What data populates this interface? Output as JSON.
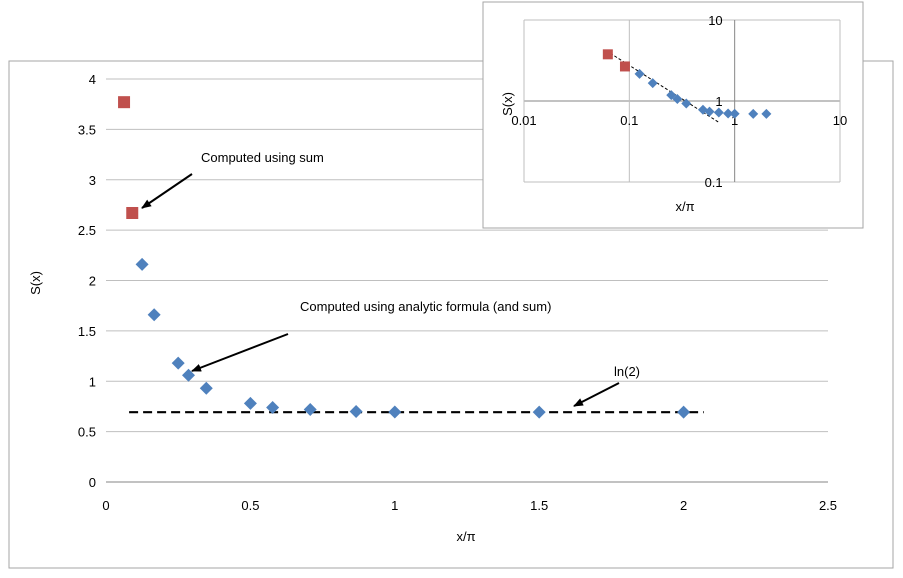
{
  "chart_data": [
    {
      "type": "scatter",
      "title": "",
      "xlabel": "x/π",
      "ylabel": "S(x)",
      "xlim": [
        0,
        2.5
      ],
      "ylim": [
        0,
        4
      ],
      "x_ticks": [
        "0",
        "0.5",
        "1",
        "1.5",
        "2",
        "2.5"
      ],
      "y_ticks": [
        "0",
        "0.5",
        "1",
        "1.5",
        "2",
        "2.5",
        "3",
        "3.5",
        "4"
      ],
      "grid": "horizontal",
      "series": [
        {
          "marker": "square",
          "color": "#c0504d",
          "points": [
            [
              0.0625,
              3.77
            ],
            [
              0.0909,
              2.67
            ]
          ]
        },
        {
          "marker": "diamond",
          "color": "#4f81bd",
          "points": [
            [
              0.125,
              2.16
            ],
            [
              0.1667,
              1.66
            ],
            [
              0.25,
              1.18
            ],
            [
              0.2857,
              1.06
            ],
            [
              0.3472,
              0.93
            ],
            [
              0.5,
              0.78
            ],
            [
              0.577,
              0.74
            ],
            [
              0.7071,
              0.72
            ],
            [
              0.866,
              0.7
            ],
            [
              1.0,
              0.695
            ],
            [
              1.5,
              0.693
            ],
            [
              2.0,
              0.693
            ]
          ]
        }
      ],
      "reference_line": {
        "y": 0.693,
        "x_range": [
          0.08,
          2.07
        ],
        "style": "dashed"
      },
      "annotations": [
        {
          "text": "Computed using sum",
          "target": [
            0.0909,
            2.67
          ]
        },
        {
          "text": "Computed using analytic formula (and sum)",
          "target": [
            0.2857,
            1.06
          ]
        },
        {
          "text": "ln(2)",
          "target": [
            1.6,
            0.75
          ]
        }
      ]
    },
    {
      "type": "scatter",
      "title": "",
      "xlabel": "x/π",
      "ylabel": "S(x)",
      "x_scale": "log",
      "y_scale": "log",
      "xlim": [
        0.01,
        10
      ],
      "ylim": [
        0.1,
        10
      ],
      "x_ticks": [
        "0.01",
        "0.1",
        "1",
        "10"
      ],
      "y_ticks": [
        "0.1",
        "1",
        "10"
      ],
      "grid": "both",
      "series": [
        {
          "marker": "square",
          "color": "#c0504d",
          "points": [
            [
              0.0625,
              3.77
            ],
            [
              0.0909,
              2.67
            ]
          ]
        },
        {
          "marker": "diamond",
          "color": "#4f81bd",
          "points": [
            [
              0.125,
              2.16
            ],
            [
              0.1667,
              1.66
            ],
            [
              0.25,
              1.18
            ],
            [
              0.2857,
              1.06
            ],
            [
              0.3472,
              0.93
            ],
            [
              0.5,
              0.78
            ],
            [
              0.577,
              0.74
            ],
            [
              0.7071,
              0.72
            ],
            [
              0.866,
              0.7
            ],
            [
              1.0,
              0.695
            ],
            [
              1.5,
              0.693
            ],
            [
              2.0,
              0.693
            ]
          ]
        }
      ],
      "reference_line": {
        "style": "dashed",
        "points": [
          [
            0.06,
            4.2
          ],
          [
            0.7,
            0.55
          ]
        ]
      }
    }
  ]
}
